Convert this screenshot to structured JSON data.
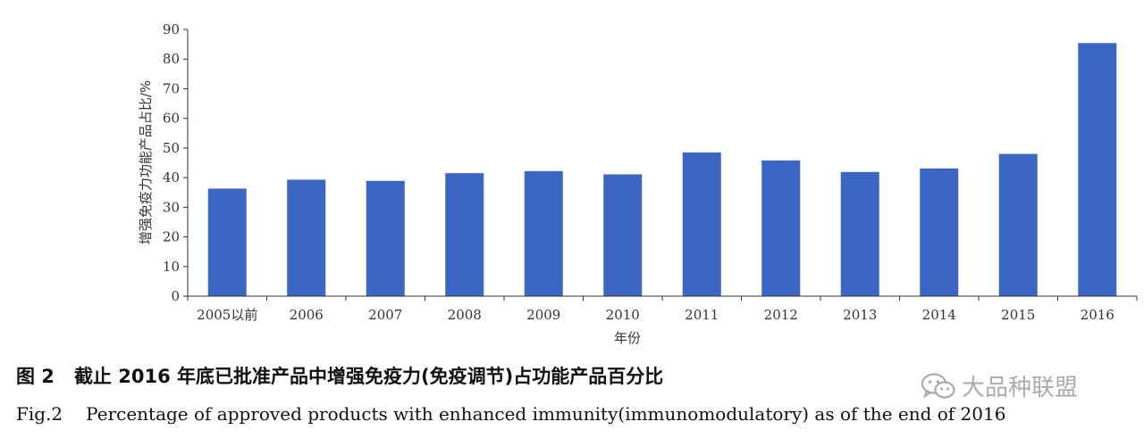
{
  "chart_data": {
    "type": "bar",
    "categories": [
      "2005以前",
      "2006",
      "2007",
      "2008",
      "2009",
      "2010",
      "2011",
      "2012",
      "2013",
      "2014",
      "2015",
      "2016"
    ],
    "values": [
      36.3,
      39.3,
      38.9,
      41.5,
      42.2,
      41.1,
      48.5,
      45.8,
      41.9,
      43.1,
      48.0,
      85.4
    ],
    "xlabel": "年份",
    "ylabel": "增强免疫力功能产品占比/%",
    "ylim": [
      0,
      90
    ],
    "yticks": [
      0,
      10,
      20,
      30,
      40,
      50,
      60,
      70,
      80,
      90
    ],
    "grid": false,
    "bar_color": "#3b66c4"
  },
  "caption": {
    "cn_number": "图 2",
    "cn_text": "截止 2016 年底已批准产品中增强免疫力(免疫调节)占功能产品百分比",
    "en_number": "Fig.2",
    "en_text": "Percentage of approved products with enhanced immunity(immunomodulatory)  as of the end of 2016"
  },
  "watermark": {
    "icon": "wechat-icon",
    "text": "大品种联盟"
  }
}
